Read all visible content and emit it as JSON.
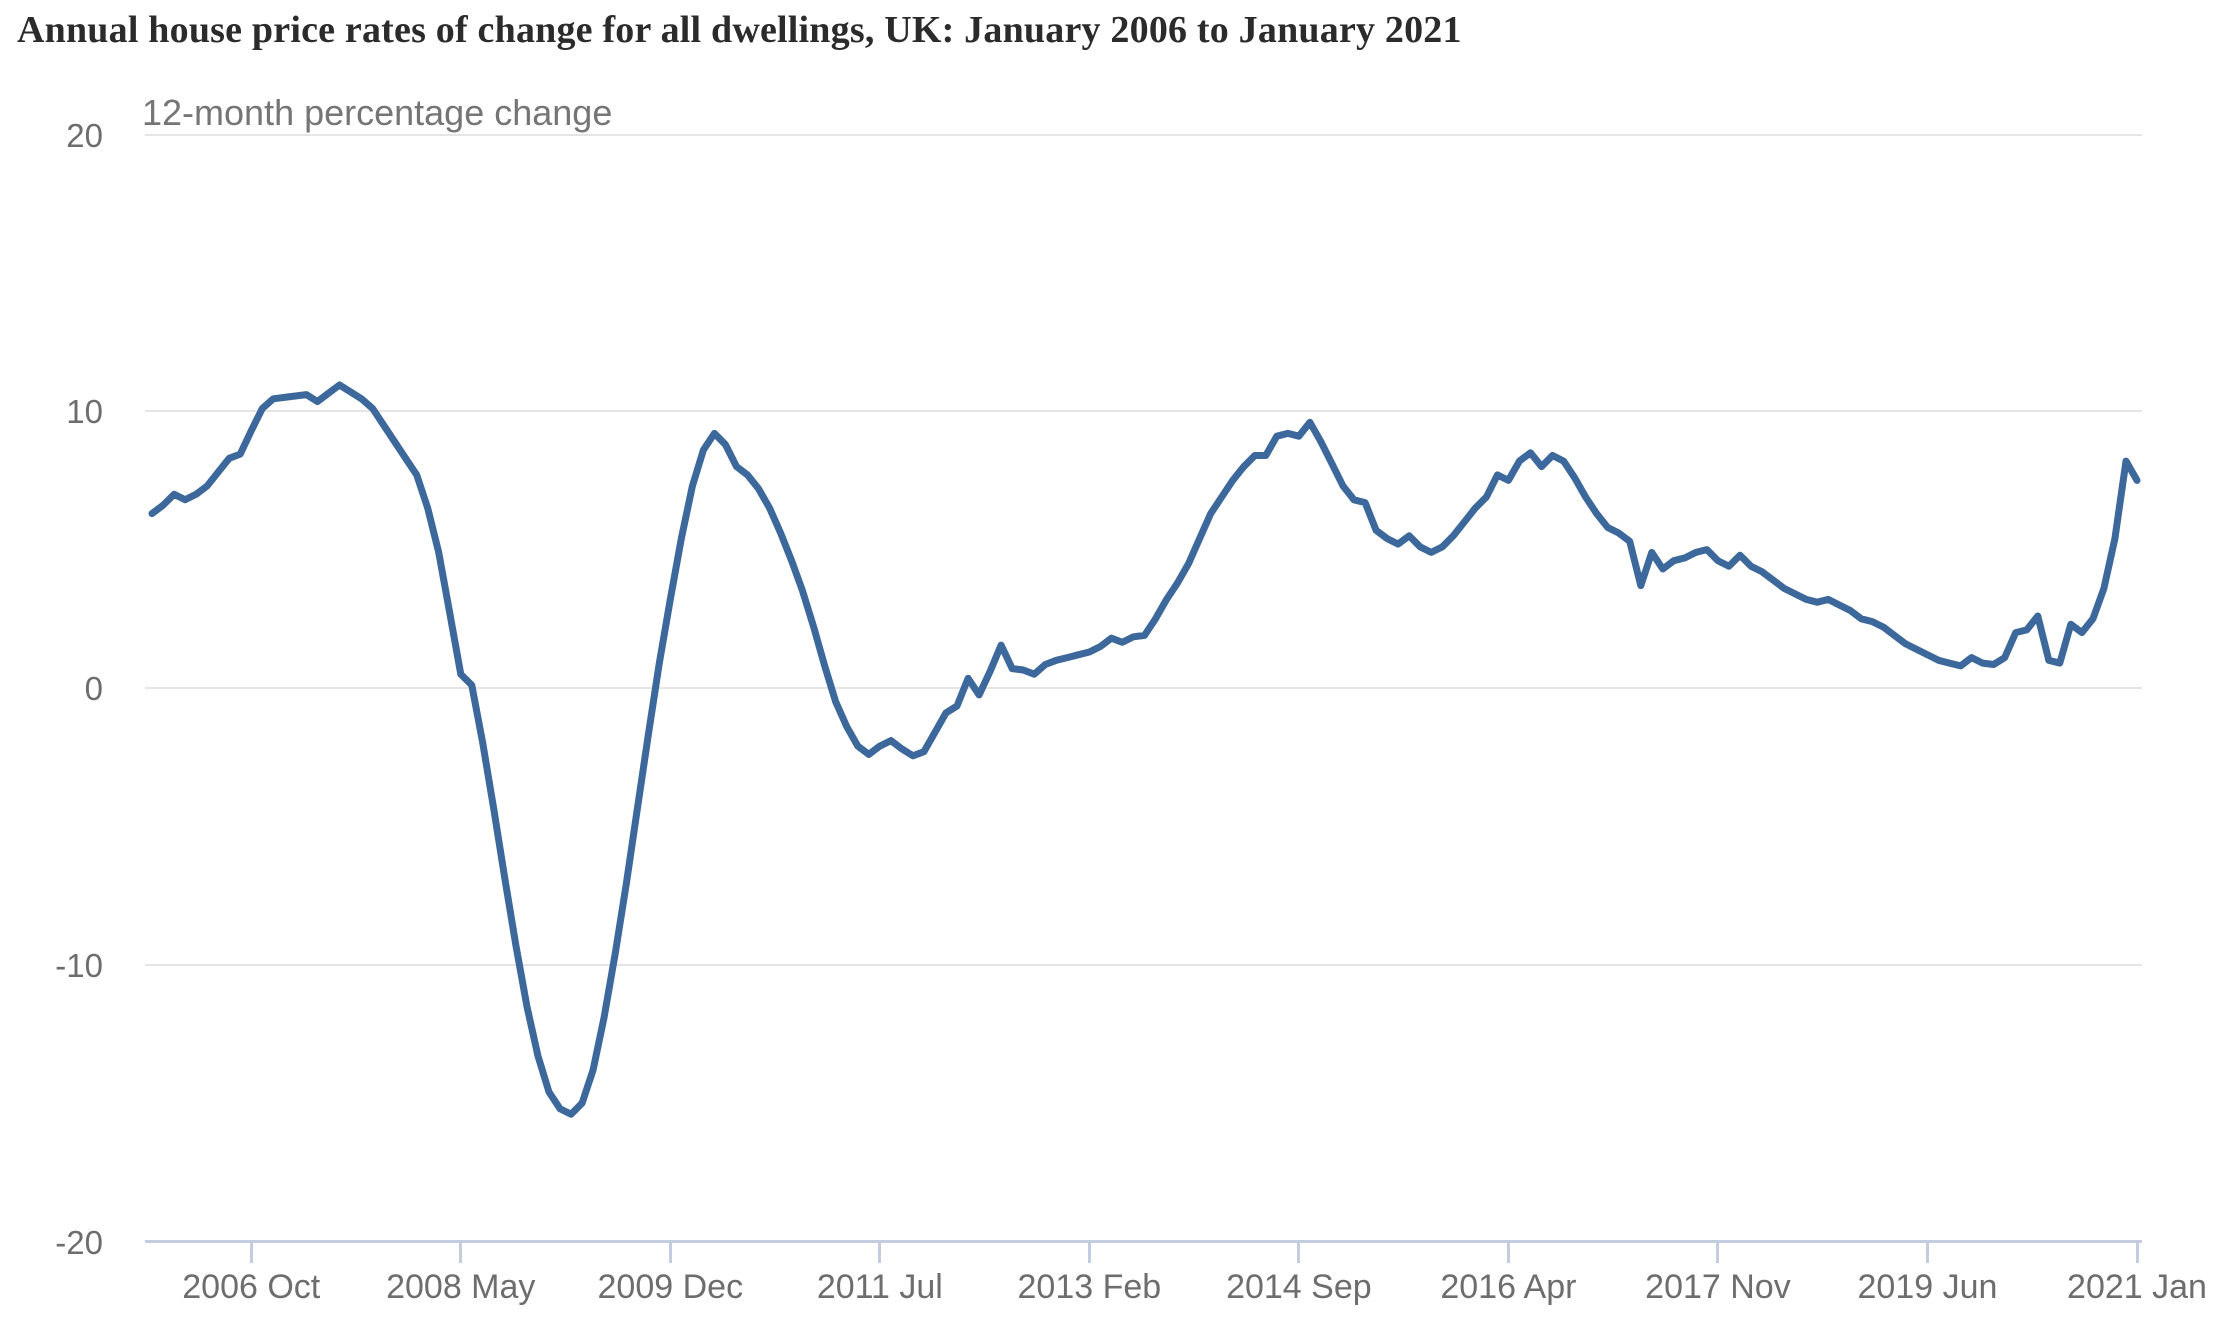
{
  "chart": {
    "title": "Annual house price rates of change for all dwellings, UK: January 2006 to January 2021",
    "subtitle": "12-month percentage change",
    "y_axis": {
      "ticks": [
        {
          "label": "20",
          "value": 20
        },
        {
          "label": "10",
          "value": 10
        },
        {
          "label": "0",
          "value": 0
        },
        {
          "label": "-10",
          "value": -10
        },
        {
          "label": "-20",
          "value": -20
        }
      ]
    },
    "x_axis": {
      "ticks": [
        {
          "label": "2006 Oct",
          "month_index": 9
        },
        {
          "label": "2008 May",
          "month_index": 28
        },
        {
          "label": "2009 Dec",
          "month_index": 47
        },
        {
          "label": "2011 Jul",
          "month_index": 66
        },
        {
          "label": "2013 Feb",
          "month_index": 85
        },
        {
          "label": "2014 Sep",
          "month_index": 104
        },
        {
          "label": "2016 Apr",
          "month_index": 123
        },
        {
          "label": "2017 Nov",
          "month_index": 142
        },
        {
          "label": "2019 Jun",
          "month_index": 161
        },
        {
          "label": "2021 Jan",
          "month_index": 180
        }
      ]
    },
    "colors": {
      "line": "#3c689c",
      "gridline": "#e5e5e5",
      "axis": "#c4cce0",
      "label_text": "#6d6d6d",
      "title_text": "#2b2b2b",
      "subtitle_text": "#757575"
    }
  },
  "chart_data": {
    "type": "line",
    "title": "Annual house price rates of change for all dwellings, UK: January 2006 to January 2021",
    "ylabel": "12-month percentage change",
    "x_start": "2006-01",
    "x_end": "2021-01",
    "frequency": "monthly",
    "unit": "percent",
    "ylim": [
      -20,
      20
    ],
    "grid": "horizontal",
    "legend": "none",
    "series": [
      {
        "name": "12-month percentage change, all dwellings, UK",
        "values": [
          6.3,
          6.6,
          7.0,
          6.8,
          7.0,
          7.3,
          7.8,
          8.3,
          8.45,
          9.3,
          10.1,
          10.45,
          10.5,
          10.55,
          10.6,
          10.35,
          10.65,
          10.95,
          10.7,
          10.45,
          10.1,
          9.5,
          8.9,
          8.3,
          7.7,
          6.5,
          4.9,
          2.7,
          0.5,
          0.1,
          -2.0,
          -4.4,
          -6.9,
          -9.3,
          -11.5,
          -13.3,
          -14.6,
          -15.2,
          -15.4,
          -15.0,
          -13.8,
          -11.9,
          -9.6,
          -7.1,
          -4.4,
          -1.7,
          0.9,
          3.2,
          5.4,
          7.3,
          8.6,
          9.2,
          8.8,
          8.0,
          7.7,
          7.2,
          6.5,
          5.6,
          4.6,
          3.5,
          2.2,
          0.8,
          -0.5,
          -1.4,
          -2.1,
          -2.4,
          -2.1,
          -1.9,
          -2.2,
          -2.45,
          -2.3,
          -1.6,
          -0.9,
          -0.65,
          0.35,
          -0.25,
          0.6,
          1.55,
          0.7,
          0.65,
          0.5,
          0.85,
          1.0,
          1.1,
          1.2,
          1.3,
          1.5,
          1.8,
          1.65,
          1.85,
          1.9,
          2.5,
          3.2,
          3.8,
          4.5,
          5.4,
          6.3,
          6.9,
          7.5,
          8.0,
          8.4,
          8.4,
          9.1,
          9.2,
          9.1,
          9.6,
          8.9,
          8.1,
          7.3,
          6.8,
          6.7,
          5.7,
          5.4,
          5.2,
          5.5,
          5.1,
          4.9,
          5.1,
          5.5,
          6.0,
          6.5,
          6.9,
          7.7,
          7.5,
          8.2,
          8.5,
          8.0,
          8.4,
          8.2,
          7.6,
          6.9,
          6.3,
          5.8,
          5.6,
          5.3,
          3.7,
          4.9,
          4.3,
          4.6,
          4.7,
          4.9,
          5.0,
          4.6,
          4.4,
          4.8,
          4.4,
          4.2,
          3.9,
          3.6,
          3.4,
          3.2,
          3.1,
          3.2,
          3.0,
          2.8,
          2.5,
          2.4,
          2.2,
          1.9,
          1.6,
          1.4,
          1.2,
          1.0,
          0.9,
          0.8,
          1.1,
          0.9,
          0.85,
          1.1,
          2.0,
          2.1,
          2.6,
          1.0,
          0.9,
          2.3,
          2.0,
          2.5,
          3.6,
          5.4,
          8.2,
          7.5
        ]
      }
    ],
    "line_color": "#3c689c"
  }
}
